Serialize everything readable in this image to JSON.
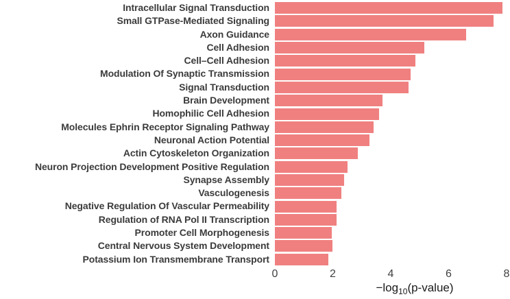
{
  "chart_data": {
    "type": "bar",
    "orientation": "horizontal",
    "title": "",
    "categories": [
      "Intracellular Signal Transduction",
      "Small GTPase-Mediated Signaling",
      "Axon Guidance",
      "Cell Adhesion",
      "Cell–Cell Adhesion",
      "Modulation Of Synaptic Transmission",
      "Signal Transduction",
      "Brain Development",
      "Homophilic Cell Adhesion",
      "Molecules Ephrin Receptor Signaling Pathway",
      "Neuronal Action Potential",
      "Actin Cytoskeleton Organization",
      "Neuron Projection Development Positive Regulation",
      "Synapse Assembly",
      "Vasculogenesis",
      "Negative Regulation Of Vascular Permeability",
      "Regulation of RNA Pol II Transcription",
      "Promoter Cell Morphogenesis",
      "Central Nervous System Development",
      "Potassium Ion Transmembrane Transport"
    ],
    "values": [
      7.85,
      7.55,
      6.6,
      5.17,
      4.86,
      4.68,
      4.62,
      3.72,
      3.6,
      3.4,
      3.27,
      2.87,
      2.5,
      2.4,
      2.3,
      2.12,
      2.12,
      1.96,
      1.98,
      1.85
    ],
    "xlabel": "-log10(p-value)",
    "xlabel_parts": {
      "prefix": "−log",
      "sub": "10",
      "suffix": "(p-value)"
    },
    "xlim": [
      0,
      8
    ],
    "xticks": [
      "0",
      "2",
      "4",
      "6",
      "8"
    ],
    "grid": false,
    "legend": null
  },
  "colors": {
    "bar": "#F08080",
    "category_label": "#3b3b3b",
    "tick_label": "#404040",
    "axis_title": "#1a1a1a",
    "background": "#ffffff"
  }
}
